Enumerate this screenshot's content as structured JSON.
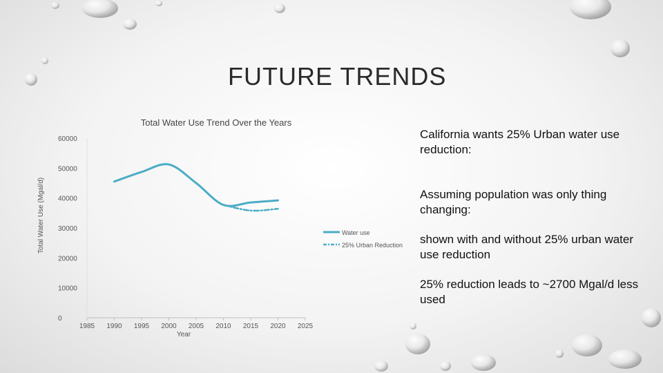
{
  "slide": {
    "title": "FUTURE TRENDS",
    "bullets": [
      "California wants 25% Urban water use reduction:",
      "Assuming population was only thing changing:",
      "shown with and without 25% urban water use reduction",
      "25% reduction leads to ~2700 Mgal/d less used"
    ]
  },
  "colors": {
    "water_use": "#4bacc6",
    "reduction": "#4bacc6",
    "axis_text": "#555555",
    "grid": "#d9d9d9"
  },
  "chart_data": {
    "type": "line",
    "title": "Total Water Use Trend Over the Years",
    "xlabel": "Year",
    "ylabel": "Total Water Use (Mgal/d)",
    "xlim": [
      1985,
      2025
    ],
    "ylim": [
      0,
      60000
    ],
    "x_ticks": [
      "1985",
      "1990",
      "1995",
      "2000",
      "2005",
      "2010",
      "2015",
      "2020",
      "2025"
    ],
    "y_ticks": [
      "0",
      "10000",
      "20000",
      "30000",
      "40000",
      "50000",
      "60000"
    ],
    "grid": false,
    "legend_position": "right",
    "series": [
      {
        "name": "Water use",
        "style": "solid",
        "x": [
          1990,
          1995,
          2000,
          2005,
          2010,
          2015,
          2020
        ],
        "y": [
          45500,
          48700,
          51200,
          45000,
          37700,
          38500,
          39200
        ]
      },
      {
        "name": "25% Urban Reduction",
        "style": "dash-dot",
        "x": [
          2010,
          2015,
          2020
        ],
        "y": [
          37700,
          35800,
          36400
        ]
      }
    ]
  }
}
